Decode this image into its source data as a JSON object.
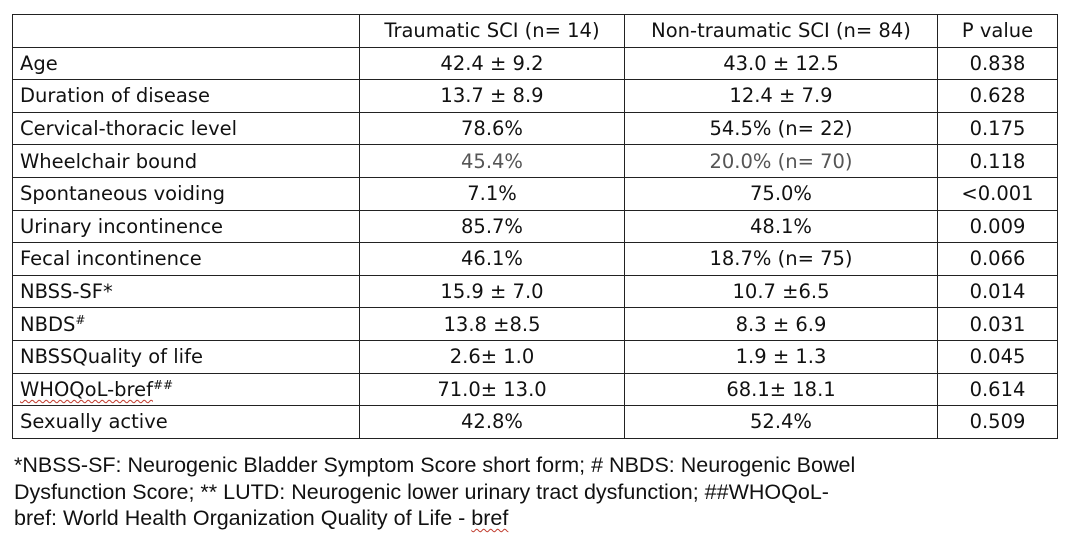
{
  "table": {
    "headers": [
      "",
      "Traumatic SCI (n= 14)",
      "Non-traumatic SCI (n= 84)",
      "P value"
    ],
    "rows": [
      {
        "label": "Age",
        "label_sup": "",
        "traumatic": "42.4 ± 9.2",
        "nontraumatic": "43.0 ± 12.5",
        "p": "0.838"
      },
      {
        "label": "Duration of disease",
        "label_sup": "",
        "traumatic": "13.7 ± 8.9",
        "nontraumatic": "12.4 ± 7.9",
        "p": "0.628"
      },
      {
        "label": "Cervical-thoracic level",
        "label_sup": "",
        "traumatic": "78.6%",
        "nontraumatic": "54.5% (n= 22)",
        "p": "0.175"
      },
      {
        "label": "Wheelchair bound",
        "label_sup": "",
        "traumatic": "45.4%",
        "nontraumatic": "20.0% (n= 70)",
        "p": "0.118"
      },
      {
        "label": "Spontaneous  voiding",
        "label_sup": "",
        "traumatic": "7.1%",
        "nontraumatic": "75.0%",
        "p": "<0.001"
      },
      {
        "label": "Urinary incontinence",
        "label_sup": "",
        "traumatic": "85.7%",
        "nontraumatic": "48.1%",
        "p": "0.009"
      },
      {
        "label": "Fecal incontinence",
        "label_sup": "",
        "traumatic": "46.1%",
        "nontraumatic": "18.7% (n= 75)",
        "p": "0.066"
      },
      {
        "label": "NBSS-SF*",
        "label_sup": "",
        "traumatic": "15.9 ± 7.0",
        "nontraumatic": "10.7 ±6.5",
        "p": "0.014"
      },
      {
        "label": "NBDS",
        "label_sup": "#",
        "traumatic": "13.8 ±8.5",
        "nontraumatic": "8.3 ± 6.9",
        "p": "0.031"
      },
      {
        "label": "NBSSQuality of life",
        "label_sup": "",
        "traumatic": "2.6± 1.0",
        "nontraumatic": "1.9 ± 1.3",
        "p": "0.045"
      },
      {
        "label": "WHOQoL-bref",
        "label_sup": "##",
        "traumatic": "71.0± 13.0",
        "nontraumatic": "68.1± 18.1",
        "p": "0.614"
      },
      {
        "label": "Sexually active",
        "label_sup": "",
        "traumatic": "42.8%",
        "nontraumatic": "52.4%",
        "p": "0.509"
      }
    ]
  },
  "footnote": {
    "lines": [
      "*NBSS-SF: Neurogenic Bladder Symptom Score short form; # NBDS: Neurogenic Bowel",
      "Dysfunction Score; ** LUTD: Neurogenic lower urinary tract dysfunction; ##WHOQoL-",
      "bref: World Health Organization Quality of Life - bref"
    ]
  },
  "colors": {
    "text": "#111111",
    "grey_text": "#555555",
    "border": "#222222",
    "spellcheck_underline": "#c0392b"
  }
}
